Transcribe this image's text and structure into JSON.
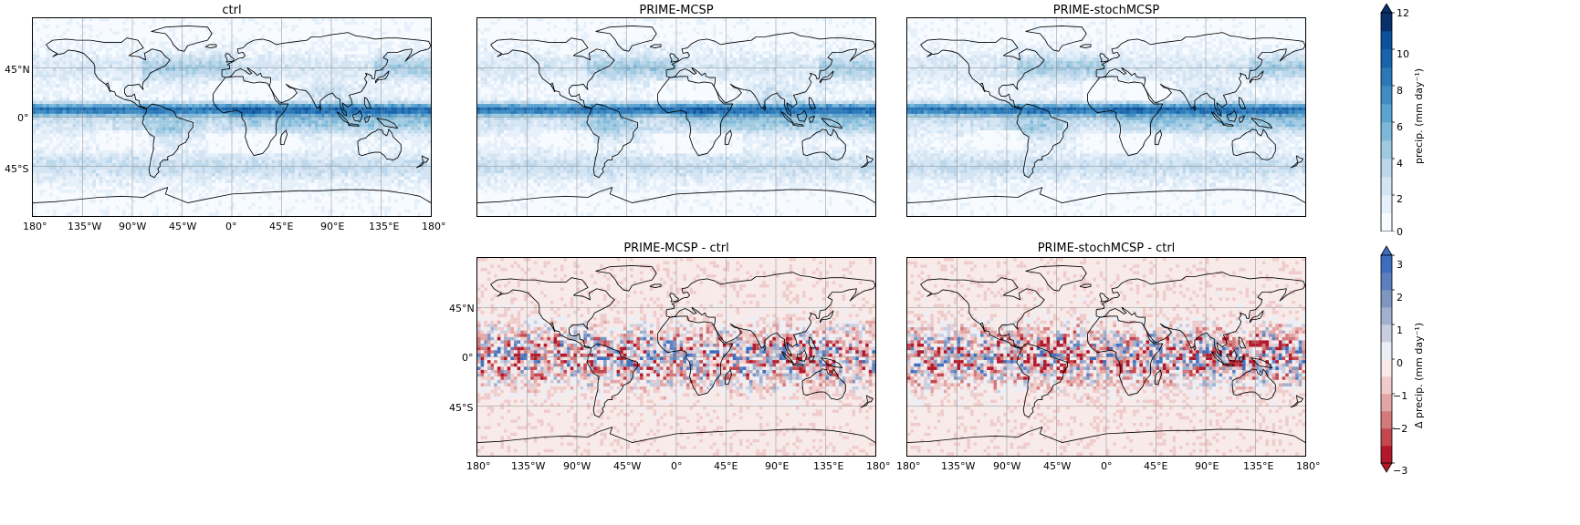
{
  "panels": [
    {
      "id": "ctrl",
      "title": "ctrl",
      "field": "abs"
    },
    {
      "id": "prime-mcsp",
      "title": "PRIME-MCSP",
      "field": "abs"
    },
    {
      "id": "prime-stochmcsp",
      "title": "PRIME-stochMCSP",
      "field": "abs"
    },
    {
      "id": "prime-mcsp-diff",
      "title": "PRIME-MCSP - ctrl",
      "field": "diff"
    },
    {
      "id": "prime-stochmcsp-diff",
      "title": "PRIME-stochMCSP - ctrl",
      "field": "diff"
    }
  ],
  "lon_ticks": [
    "180°",
    "135°W",
    "90°W",
    "45°W",
    "0°",
    "45°E",
    "90°E",
    "135°E",
    "180°"
  ],
  "lat_ticks": [
    "45°N",
    "0°",
    "45°S"
  ],
  "colorbars": {
    "abs": {
      "label": "precip. (mm day⁻¹)",
      "tick_labels": [
        "12",
        "10",
        "8",
        "6",
        "4",
        "2",
        "0"
      ],
      "range": [
        0,
        12
      ],
      "colors": [
        "#f7fbff",
        "#e6f0fa",
        "#d3e4f3",
        "#bcd7eb",
        "#9ecae1",
        "#7db8da",
        "#5ba3d0",
        "#3f8dc3",
        "#2a78b8",
        "#1764ab",
        "#0a519c",
        "#08306b"
      ]
    },
    "diff": {
      "label": "Δ precip. (mm day⁻¹)",
      "tick_labels": [
        "3",
        "2",
        "1",
        "0",
        "−1",
        "−2",
        "−3"
      ],
      "range": [
        -3,
        3
      ],
      "colors": [
        "#b2182b",
        "#c4474f",
        "#d47a7c",
        "#e3a6a6",
        "#efcccb",
        "#f7eae8",
        "#eceef5",
        "#c8cee0",
        "#a3b0cd",
        "#7f95c2",
        "#5b7fbf",
        "#3d6dbd"
      ]
    }
  }
}
